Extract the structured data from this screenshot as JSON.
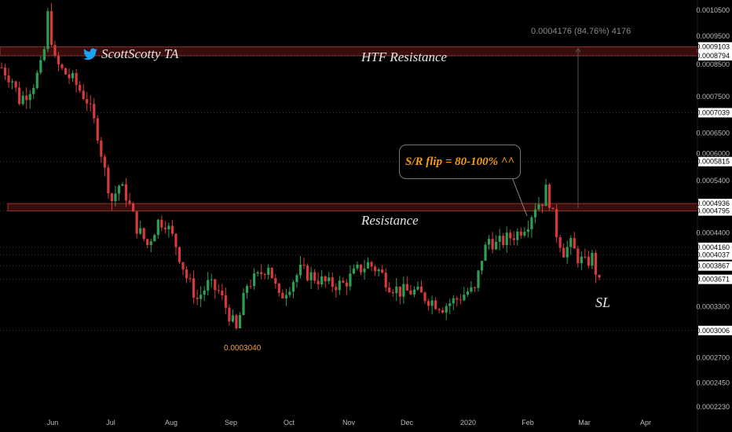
{
  "chart_data": {
    "type": "candlestick",
    "title": "",
    "y_scale": "log",
    "ylim": [
      0.000221,
      0.00108
    ],
    "x_ticks": [
      "Jun",
      "Jul",
      "Aug",
      "Sep",
      "Oct",
      "Nov",
      "Dec",
      "2020",
      "Feb",
      "Mar",
      "Apr"
    ],
    "y_ticks": [
      "0.0010500",
      "0.0009500",
      "0.0008500",
      "0.0007500",
      "0.0006500",
      "0.0006000",
      "0.0005400",
      "0.0004400",
      "0.0003300",
      "0.0002700",
      "0.0002450",
      "0.0002230"
    ],
    "price_labels": [
      {
        "text": "0.0009103",
        "value": 0.0009103,
        "highlight": true
      },
      {
        "text": "0.0008794",
        "value": 0.0008794,
        "highlight": true
      },
      {
        "text": "0.0007039",
        "value": 0.0007039,
        "highlight": true
      },
      {
        "text": "0.0005815",
        "value": 0.0005815,
        "highlight": true
      },
      {
        "text": "0.0004936",
        "value": 0.0004936,
        "highlight": true
      },
      {
        "text": "0.0004795",
        "value": 0.0004795,
        "highlight": true
      },
      {
        "text": "0.0004160",
        "value": 0.000416,
        "highlight": true
      },
      {
        "text": "0.0004037",
        "value": 0.0004037,
        "highlight": true
      },
      {
        "text": "0.0003867",
        "value": 0.0003867,
        "highlight": true
      },
      {
        "text": "0.0003671",
        "value": 0.0003671,
        "highlight": true
      },
      {
        "text": "0.0003006",
        "value": 0.0003006,
        "highlight": true
      }
    ],
    "zones": [
      {
        "name": "HTF Resistance",
        "low": 0.0008794,
        "high": 0.0009103
      },
      {
        "name": "Resistance",
        "low": 0.0004795,
        "high": 0.0004936
      }
    ],
    "price_path": [
      [
        0,
        0.00084
      ],
      [
        3,
        0.0008
      ],
      [
        5,
        0.00074
      ],
      [
        7,
        0.00076
      ],
      [
        9,
        0.00079
      ],
      [
        11,
        0.00084
      ],
      [
        12,
        0.0009
      ],
      [
        13,
        0.00103
      ],
      [
        15,
        0.00086
      ],
      [
        17,
        0.00083
      ],
      [
        20,
        0.0008
      ],
      [
        24,
        0.00074
      ],
      [
        27,
        0.00065
      ],
      [
        29,
        0.00056
      ],
      [
        31,
        0.0005
      ],
      [
        33,
        0.00053
      ],
      [
        35,
        0.00051
      ],
      [
        38,
        0.00045
      ],
      [
        41,
        0.00042
      ],
      [
        44,
        0.00046
      ],
      [
        46,
        0.00046
      ],
      [
        49,
        0.00042
      ],
      [
        52,
        0.00037
      ],
      [
        55,
        0.00034
      ],
      [
        58,
        0.00036
      ],
      [
        61,
        0.00035
      ],
      [
        64,
        0.00032
      ],
      [
        66,
        0.0003
      ],
      [
        69,
        0.00036
      ],
      [
        72,
        0.00037
      ],
      [
        75,
        0.00039
      ],
      [
        78,
        0.00034
      ],
      [
        81,
        0.00036
      ],
      [
        84,
        0.00038
      ],
      [
        88,
        0.00037
      ],
      [
        92,
        0.00036
      ],
      [
        96,
        0.00036
      ],
      [
        100,
        0.00038
      ],
      [
        103,
        0.00039
      ],
      [
        106,
        0.00038
      ],
      [
        109,
        0.00036
      ],
      [
        112,
        0.00035
      ],
      [
        116,
        0.00035
      ],
      [
        120,
        0.00034
      ],
      [
        124,
        0.00033
      ],
      [
        128,
        0.00034
      ],
      [
        131,
        0.00035
      ],
      [
        133,
        0.00035
      ],
      [
        135,
        0.0004
      ],
      [
        137,
        0.00043
      ],
      [
        139,
        0.00042
      ],
      [
        142,
        0.00043
      ],
      [
        145,
        0.00044
      ],
      [
        148,
        0.00046
      ],
      [
        150,
        0.00049
      ],
      [
        152,
        0.0005
      ],
      [
        153,
        0.00052
      ],
      [
        154,
        0.0005
      ],
      [
        156,
        0.00044
      ],
      [
        158,
        0.00041
      ],
      [
        160,
        0.00042
      ],
      [
        162,
        0.0004
      ],
      [
        164,
        0.00039
      ],
      [
        166,
        0.0004
      ],
      [
        168,
        0.00036
      ]
    ]
  },
  "annotations": {
    "watermark": "ScottScotty TA",
    "watermark_icon": "twitter-icon",
    "htf_resistance": "HTF Resistance",
    "resistance": "Resistance",
    "callout": "S/R flip = 80-100% ^^",
    "measure": "0.0004176 (84.76%) 4176",
    "low_label": "0.0003040",
    "stop_loss": "SL"
  },
  "colors": {
    "background": "#000000",
    "up_candle": "#2e9e54",
    "down_candle": "#d63a3a",
    "zone_fill": "#3a0d0d",
    "zone_border": "#a33535",
    "callout_text": "#f39c12",
    "low_label": "#f0a040",
    "twitter": "#1da1f2"
  }
}
